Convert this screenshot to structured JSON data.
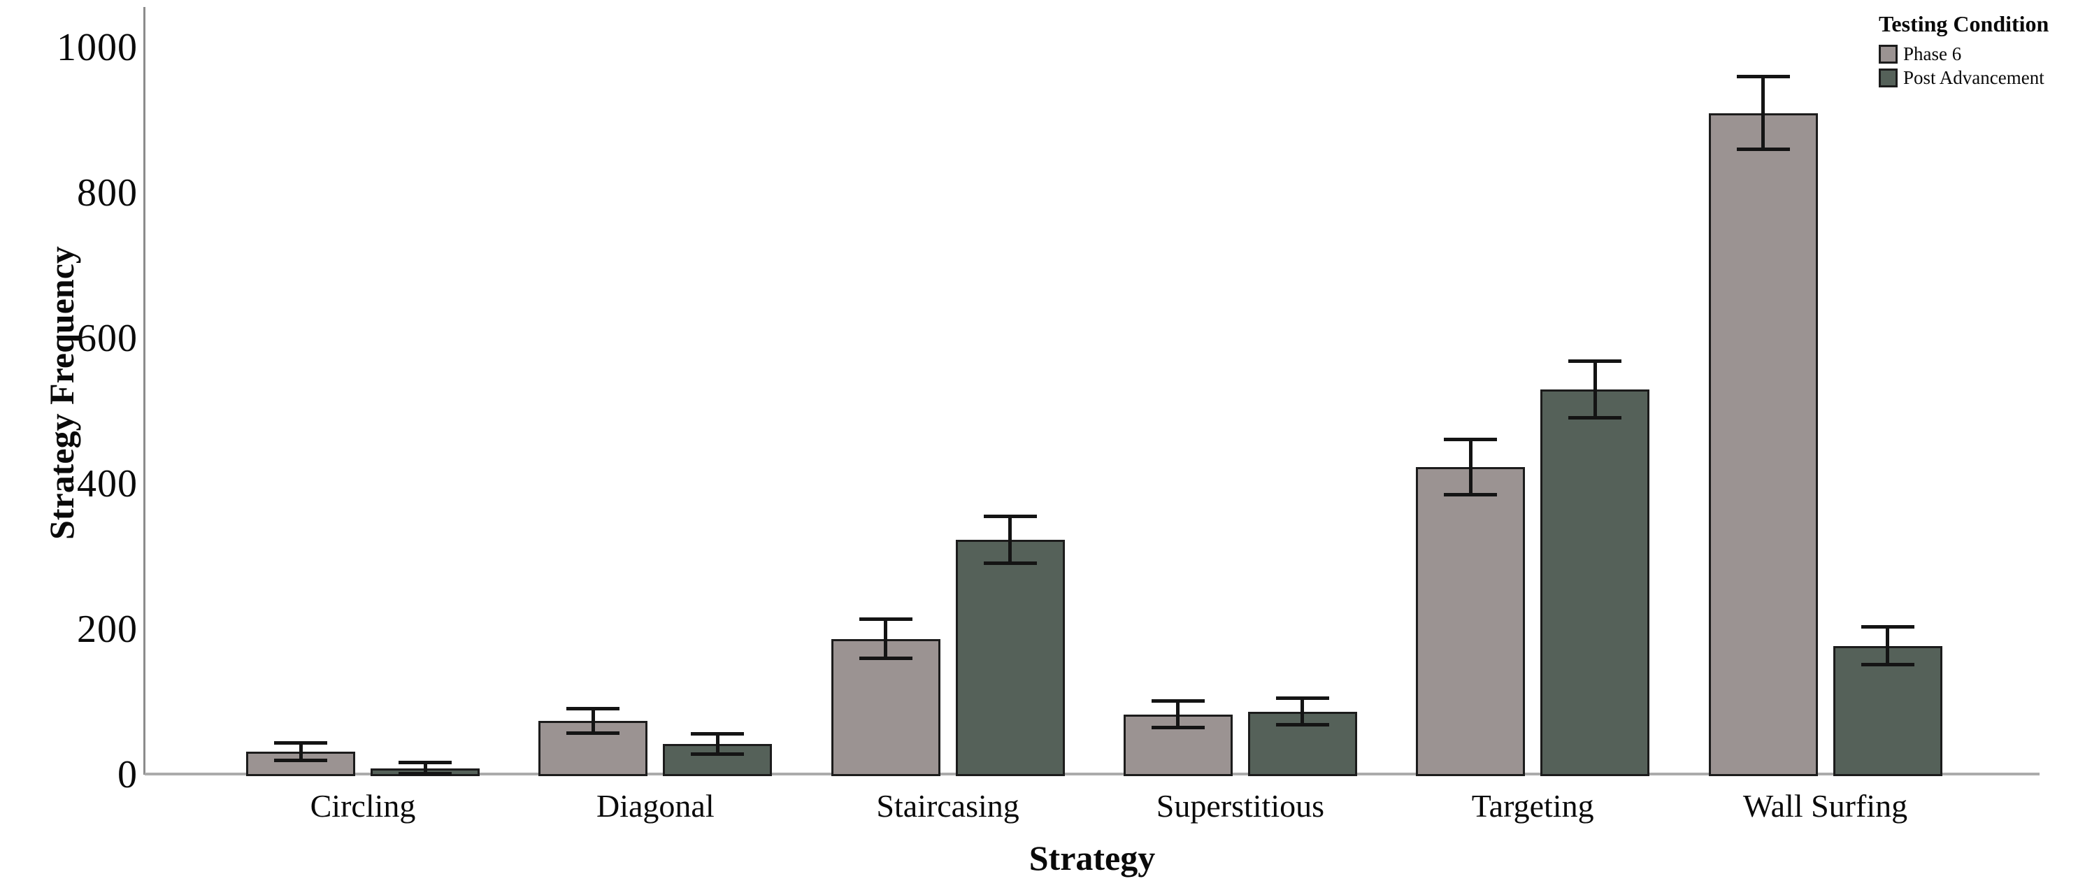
{
  "y_axis": {
    "title": "Strategy Frequency",
    "tick_labels": [
      "0",
      "200",
      "400",
      "600",
      "800",
      "1000"
    ]
  },
  "x_axis": {
    "title": "Strategy"
  },
  "legend": {
    "title": "Testing Condition",
    "items": [
      {
        "label": "Phase 6",
        "color": "#9b9392"
      },
      {
        "label": "Post Advancement",
        "color": "#556159"
      }
    ]
  },
  "chart_data": {
    "type": "bar",
    "title": "",
    "categories": [
      "Circling",
      "Diagonal",
      "Staircasing",
      "Superstitious",
      "Targeting",
      "Wall Surfing"
    ],
    "series": [
      {
        "name": "Phase 6",
        "color": "#9b9392",
        "values": [
          32,
          74,
          187,
          83,
          423,
          910
        ],
        "errors": [
          12,
          17,
          27,
          18,
          38,
          50
        ]
      },
      {
        "name": "Post Advancement",
        "color": "#556159",
        "values": [
          9,
          42,
          323,
          87,
          530,
          177
        ],
        "errors": [
          8,
          14,
          32,
          18,
          39,
          26
        ]
      }
    ],
    "xlabel": "Strategy",
    "ylabel": "Strategy Frequency",
    "ylim": [
      0,
      1000
    ],
    "yticks": [
      0,
      200,
      400,
      600,
      800,
      1000
    ],
    "grid": false,
    "error_bars": true,
    "bar_edge_color": "#1c1c1c",
    "legend_title": "Testing Condition",
    "legend_position": "top-right"
  }
}
